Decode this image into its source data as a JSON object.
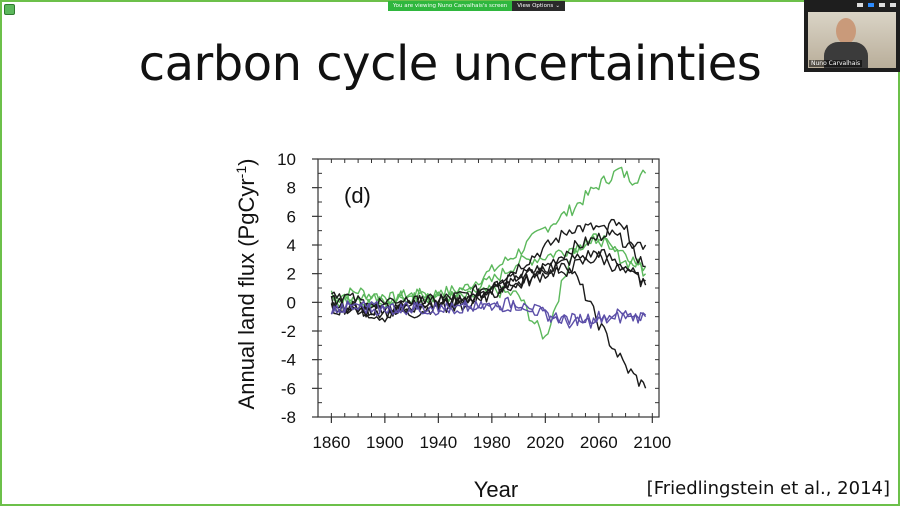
{
  "meeting": {
    "share_banner": "You are viewing Nuno Carvalhais's screen",
    "view_options": "View Options",
    "participant_name": "Nuno Carvalhais"
  },
  "slide": {
    "title": "carbon cycle uncertainties",
    "citation": "[Friedlingstein et al., 2014]"
  },
  "chart_data": {
    "type": "line",
    "panel_label": "(d)",
    "xlabel": "Year",
    "ylabel": "Annual land flux (PgCyr",
    "ylabel_sup": "-1",
    "ylabel_end": ")",
    "xlim": [
      1850,
      2105
    ],
    "ylim": [
      -8,
      10
    ],
    "xticks": [
      1860,
      1900,
      1940,
      1980,
      2020,
      2060,
      2100
    ],
    "yticks": [
      10,
      8,
      6,
      4,
      2,
      0,
      -2,
      -4,
      -6,
      -8
    ],
    "colors": {
      "green": "#5cb85c",
      "black": "#1a1a1a",
      "purple": "#5b4ea8"
    },
    "series": [
      {
        "color": "green",
        "x": [
          1860,
          1880,
          1900,
          1920,
          1940,
          1960,
          1980,
          2000,
          2020,
          2040,
          2060,
          2075,
          2085,
          2095
        ],
        "y": [
          0.3,
          0.8,
          0.2,
          0.5,
          0.6,
          1.0,
          2.2,
          3.5,
          5.2,
          6.5,
          8.2,
          9.2,
          8.6,
          9.0
        ]
      },
      {
        "color": "green",
        "x": [
          1860,
          1880,
          1900,
          1920,
          1940,
          1960,
          1980,
          2000,
          2010,
          2020,
          2040,
          2060,
          2080,
          2095
        ],
        "y": [
          0.5,
          0.2,
          -0.1,
          0.3,
          0.5,
          0.3,
          0.8,
          0.5,
          -1.2,
          -2.5,
          3.5,
          4.5,
          3.5,
          2.0
        ]
      },
      {
        "color": "green",
        "x": [
          1860,
          1880,
          1900,
          1920,
          1940,
          1960,
          1980,
          2000,
          2020,
          2040,
          2060,
          2080,
          2095
        ],
        "y": [
          0.0,
          0.4,
          0.1,
          0.6,
          0.3,
          0.8,
          1.5,
          2.8,
          3.2,
          3.8,
          4.5,
          2.8,
          2.5
        ]
      },
      {
        "color": "black",
        "x": [
          1860,
          1880,
          1900,
          1920,
          1940,
          1960,
          1980,
          2000,
          2020,
          2040,
          2060,
          2075,
          2085,
          2095
        ],
        "y": [
          -0.2,
          -0.5,
          -1.0,
          -0.5,
          0.0,
          -0.2,
          1.0,
          1.8,
          2.5,
          3.8,
          4.5,
          6.0,
          4.2,
          4.0
        ]
      },
      {
        "color": "black",
        "x": [
          1860,
          1880,
          1900,
          1920,
          1940,
          1960,
          1980,
          2000,
          2020,
          2040,
          2060,
          2080,
          2095
        ],
        "y": [
          0.8,
          0.1,
          -0.5,
          0.0,
          0.2,
          0.5,
          1.2,
          2.5,
          3.8,
          5.2,
          5.2,
          4.2,
          2.5
        ]
      },
      {
        "color": "black",
        "x": [
          1860,
          1880,
          1900,
          1920,
          1940,
          1960,
          1980,
          2000,
          2020,
          2040,
          2060,
          2080,
          2095
        ],
        "y": [
          0.2,
          -0.8,
          -0.3,
          -0.8,
          -0.2,
          0.3,
          0.8,
          1.5,
          2.2,
          3.0,
          3.5,
          2.5,
          1.2
        ]
      },
      {
        "color": "black",
        "x": [
          1860,
          1880,
          1900,
          1920,
          1940,
          1960,
          1980,
          2000,
          2020,
          2040,
          2060,
          2080,
          2095
        ],
        "y": [
          -0.5,
          -0.3,
          0.1,
          0.3,
          -0.5,
          0.0,
          1.0,
          1.2,
          2.0,
          2.5,
          3.2,
          2.0,
          1.5
        ]
      },
      {
        "color": "black",
        "x": [
          1860,
          1880,
          1900,
          1920,
          1940,
          1960,
          1980,
          2000,
          2020,
          2040,
          2050,
          2060,
          2070,
          2080,
          2090,
          2095
        ],
        "y": [
          0.0,
          -0.4,
          -0.7,
          -0.2,
          0.2,
          0.0,
          0.5,
          1.5,
          2.5,
          2.2,
          0.5,
          -1.5,
          -3.0,
          -4.5,
          -5.5,
          -6.0
        ]
      },
      {
        "color": "purple",
        "x": [
          1860,
          1880,
          1900,
          1920,
          1940,
          1960,
          1980,
          2000,
          2020,
          2040,
          2060,
          2080,
          2095
        ],
        "y": [
          -0.5,
          -0.4,
          -0.5,
          -0.4,
          -0.5,
          -0.4,
          -0.3,
          -0.2,
          -0.8,
          -1.5,
          -1.3,
          -1.0,
          -1.0
        ]
      },
      {
        "color": "purple",
        "x": [
          1860,
          1880,
          1900,
          1920,
          1940,
          1960,
          1980,
          2000,
          2020,
          2040,
          2060,
          2080,
          2095
        ],
        "y": [
          -0.4,
          -0.3,
          -0.4,
          -0.3,
          -0.4,
          -0.3,
          -0.2,
          0.0,
          -0.9,
          -1.2,
          -1.0,
          -0.8,
          -0.9
        ]
      }
    ]
  }
}
